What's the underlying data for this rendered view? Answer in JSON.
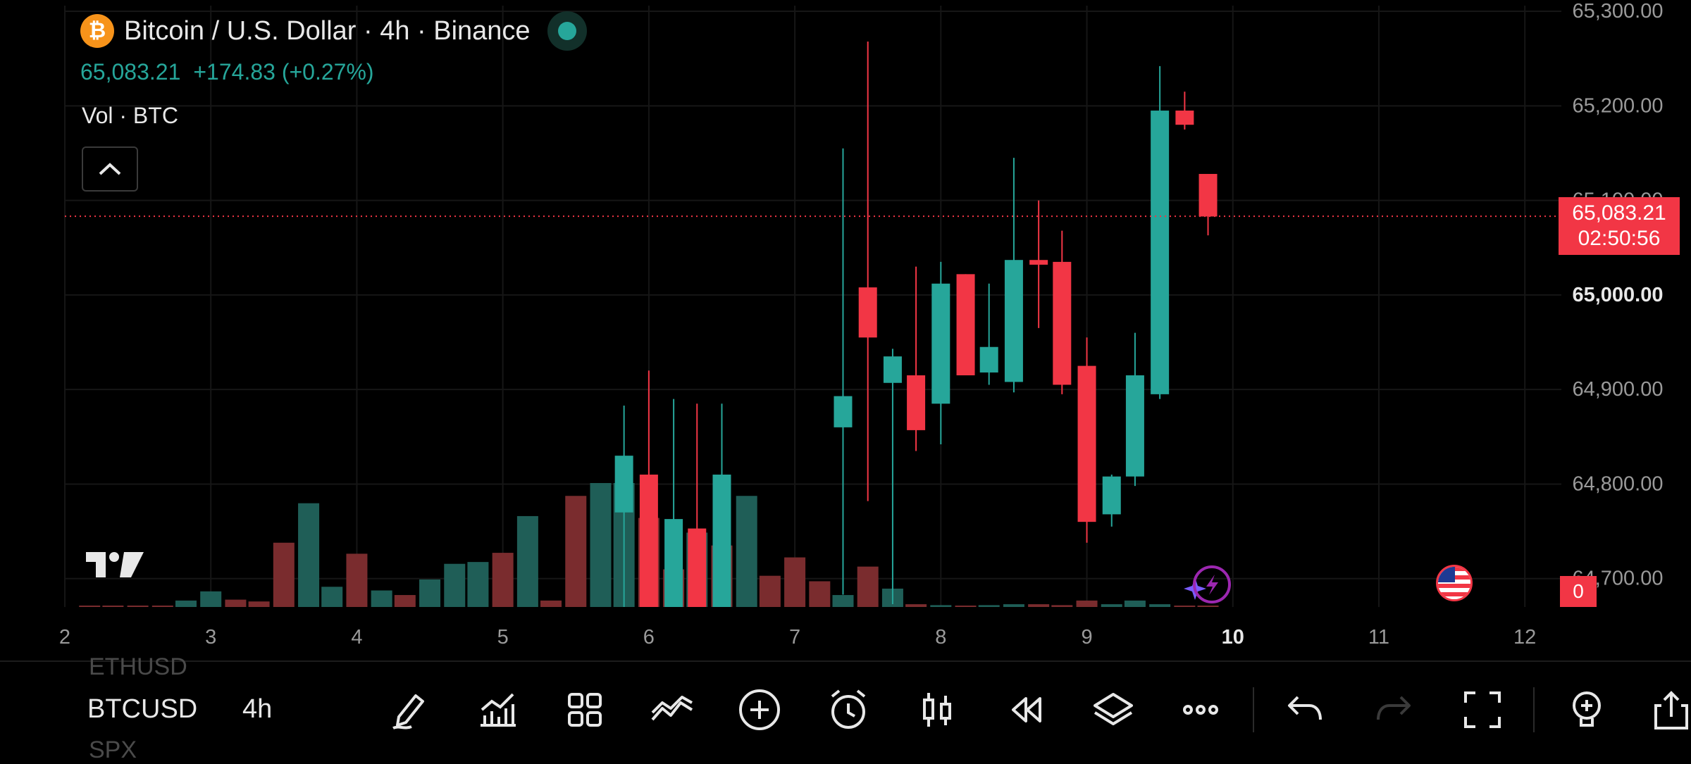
{
  "header": {
    "coin_symbol": "₿",
    "title": "Bitcoin / U.S. Dollar · 4h · Binance",
    "last_price": "65,083.21",
    "change": "+174.83 (+0.27%)",
    "volume_label": "Vol · BTC"
  },
  "price_tag": {
    "price": "65,083.21",
    "countdown": "02:50:56"
  },
  "volume_badge": "0",
  "colors": {
    "up": "#26a69a",
    "down": "#f23645",
    "up_vol": "#1f5e57",
    "down_vol": "#7a2c2e",
    "grid": "#161616"
  },
  "chart_data": {
    "type": "candlestick",
    "interval": "4h",
    "y_ticks": [
      "65,300.00",
      "65,200.00",
      "65,100.00",
      "65,000.00",
      "64,900.00",
      "64,800.00",
      "64,700.00"
    ],
    "y_range": [
      64670,
      65306
    ],
    "x_ticks": [
      "2",
      "3",
      "4",
      "5",
      "6",
      "7",
      "8",
      "9",
      "10",
      "11",
      "12"
    ],
    "x_range": [
      2,
      12.25
    ],
    "current_price": 65083.21,
    "candles": [
      {
        "t": 7.33,
        "o": 64860,
        "h": 65155,
        "l": 64683,
        "c": 64893
      },
      {
        "t": 7.5,
        "o": 65008,
        "h": 65268,
        "l": 64782,
        "c": 64955
      },
      {
        "t": 7.67,
        "o": 64907,
        "h": 64943,
        "l": 64673,
        "c": 64935
      },
      {
        "t": 7.83,
        "o": 64915,
        "h": 65030,
        "l": 64835,
        "c": 64857
      },
      {
        "t": 8.0,
        "o": 64885,
        "h": 65035,
        "l": 64842,
        "c": 65012
      },
      {
        "t": 8.17,
        "o": 65022,
        "h": 65022,
        "l": 64917,
        "c": 64915
      },
      {
        "t": 8.33,
        "o": 64918,
        "h": 65012,
        "l": 64905,
        "c": 64945
      },
      {
        "t": 8.5,
        "o": 64908,
        "h": 65145,
        "l": 64897,
        "c": 65037
      },
      {
        "t": 8.67,
        "o": 65037,
        "h": 65100,
        "l": 64965,
        "c": 65032
      },
      {
        "t": 8.83,
        "o": 65035,
        "h": 65068,
        "l": 64895,
        "c": 64905
      },
      {
        "t": 9.0,
        "o": 64925,
        "h": 64955,
        "l": 64738,
        "c": 64760
      },
      {
        "t": 9.17,
        "o": 64768,
        "h": 64810,
        "l": 64755,
        "c": 64808
      },
      {
        "t": 9.33,
        "o": 64808,
        "h": 64960,
        "l": 64798,
        "c": 64915
      },
      {
        "t": 9.5,
        "o": 64895,
        "h": 65242,
        "l": 64890,
        "c": 65195
      },
      {
        "t": 9.67,
        "o": 65195,
        "h": 65215,
        "l": 65175,
        "c": 65180
      },
      {
        "t": 9.83,
        "o": 65128,
        "h": 65128,
        "l": 65063,
        "c": 65083
      }
    ],
    "volume": [
      {
        "t": 2.17,
        "v": 1,
        "up": false
      },
      {
        "t": 2.33,
        "v": 1,
        "up": false
      },
      {
        "t": 2.5,
        "v": 1,
        "up": false
      },
      {
        "t": 2.67,
        "v": 1,
        "up": false
      },
      {
        "t": 2.83,
        "v": 7,
        "up": true
      },
      {
        "t": 3.0,
        "v": 17,
        "up": true
      },
      {
        "t": 3.17,
        "v": 8,
        "up": false
      },
      {
        "t": 3.33,
        "v": 6,
        "up": false
      },
      {
        "t": 3.5,
        "v": 70,
        "up": false
      },
      {
        "t": 3.67,
        "v": 113,
        "up": true
      },
      {
        "t": 3.83,
        "v": 22,
        "up": true
      },
      {
        "t": 4.0,
        "v": 58,
        "up": false
      },
      {
        "t": 4.17,
        "v": 18,
        "up": true
      },
      {
        "t": 4.33,
        "v": 13,
        "up": false
      },
      {
        "t": 4.5,
        "v": 30,
        "up": true
      },
      {
        "t": 4.67,
        "v": 47,
        "up": true
      },
      {
        "t": 4.83,
        "v": 49,
        "up": true
      },
      {
        "t": 5.0,
        "v": 59,
        "up": false
      },
      {
        "t": 5.17,
        "v": 99,
        "up": true
      },
      {
        "t": 5.33,
        "v": 7,
        "up": false
      },
      {
        "t": 5.5,
        "v": 121,
        "up": false
      },
      {
        "t": 5.67,
        "v": 135,
        "up": true
      },
      {
        "t": 5.83,
        "v": 135,
        "up": true
      },
      {
        "t": 6.0,
        "v": 97,
        "up": false
      },
      {
        "t": 6.17,
        "v": 41,
        "up": false
      },
      {
        "t": 6.33,
        "v": 81,
        "up": true
      },
      {
        "t": 6.5,
        "v": 67,
        "up": false
      },
      {
        "t": 6.67,
        "v": 121,
        "up": true
      },
      {
        "t": 6.83,
        "v": 34,
        "up": false
      },
      {
        "t": 7.0,
        "v": 54,
        "up": false
      },
      {
        "t": 7.17,
        "v": 28,
        "up": false
      },
      {
        "t": 7.33,
        "v": 13,
        "up": true
      },
      {
        "t": 7.5,
        "v": 44,
        "up": false
      },
      {
        "t": 7.67,
        "v": 20,
        "up": true
      },
      {
        "t": 7.83,
        "v": 3,
        "up": false
      },
      {
        "t": 8.0,
        "v": 2,
        "up": true
      },
      {
        "t": 8.17,
        "v": 1,
        "up": false
      },
      {
        "t": 8.33,
        "v": 2,
        "up": true
      },
      {
        "t": 8.5,
        "v": 3,
        "up": true
      },
      {
        "t": 8.67,
        "v": 3,
        "up": false
      },
      {
        "t": 8.83,
        "v": 2,
        "up": false
      },
      {
        "t": 9.0,
        "v": 7,
        "up": false
      },
      {
        "t": 9.17,
        "v": 3,
        "up": true
      },
      {
        "t": 9.33,
        "v": 7,
        "up": true
      },
      {
        "t": 9.5,
        "v": 3,
        "up": true
      },
      {
        "t": 9.67,
        "v": 1,
        "up": false
      },
      {
        "t": 9.83,
        "v": 1,
        "up": false
      }
    ],
    "volume_candles_overlay": [
      {
        "t": 5.83,
        "o": 64770,
        "h": 64883,
        "l": 64670,
        "c": 64830
      },
      {
        "t": 6.0,
        "o": 64810,
        "h": 64920,
        "l": 64670,
        "c": 64670
      },
      {
        "t": 6.17,
        "o": 64670,
        "h": 64890,
        "l": 64670,
        "c": 64763
      },
      {
        "t": 6.33,
        "o": 64753,
        "h": 64885,
        "l": 64670,
        "c": 64670
      },
      {
        "t": 6.5,
        "o": 64670,
        "h": 64885,
        "l": 64670,
        "c": 64810
      }
    ]
  },
  "bottom_bar": {
    "prev_symbol": "ETHUSD",
    "symbol": "BTCUSD",
    "next_symbol": "SPX",
    "interval": "4h",
    "tools": [
      "pencil-icon",
      "indicators-icon",
      "grid-icon",
      "pattern-icon",
      "plus-circle-icon",
      "alarm-icon",
      "candle-type-icon",
      "replay-icon",
      "layers-icon",
      "more-icon",
      "undo-icon",
      "redo-icon",
      "fullscreen-icon",
      "lightbulb-icon",
      "share-icon"
    ]
  }
}
